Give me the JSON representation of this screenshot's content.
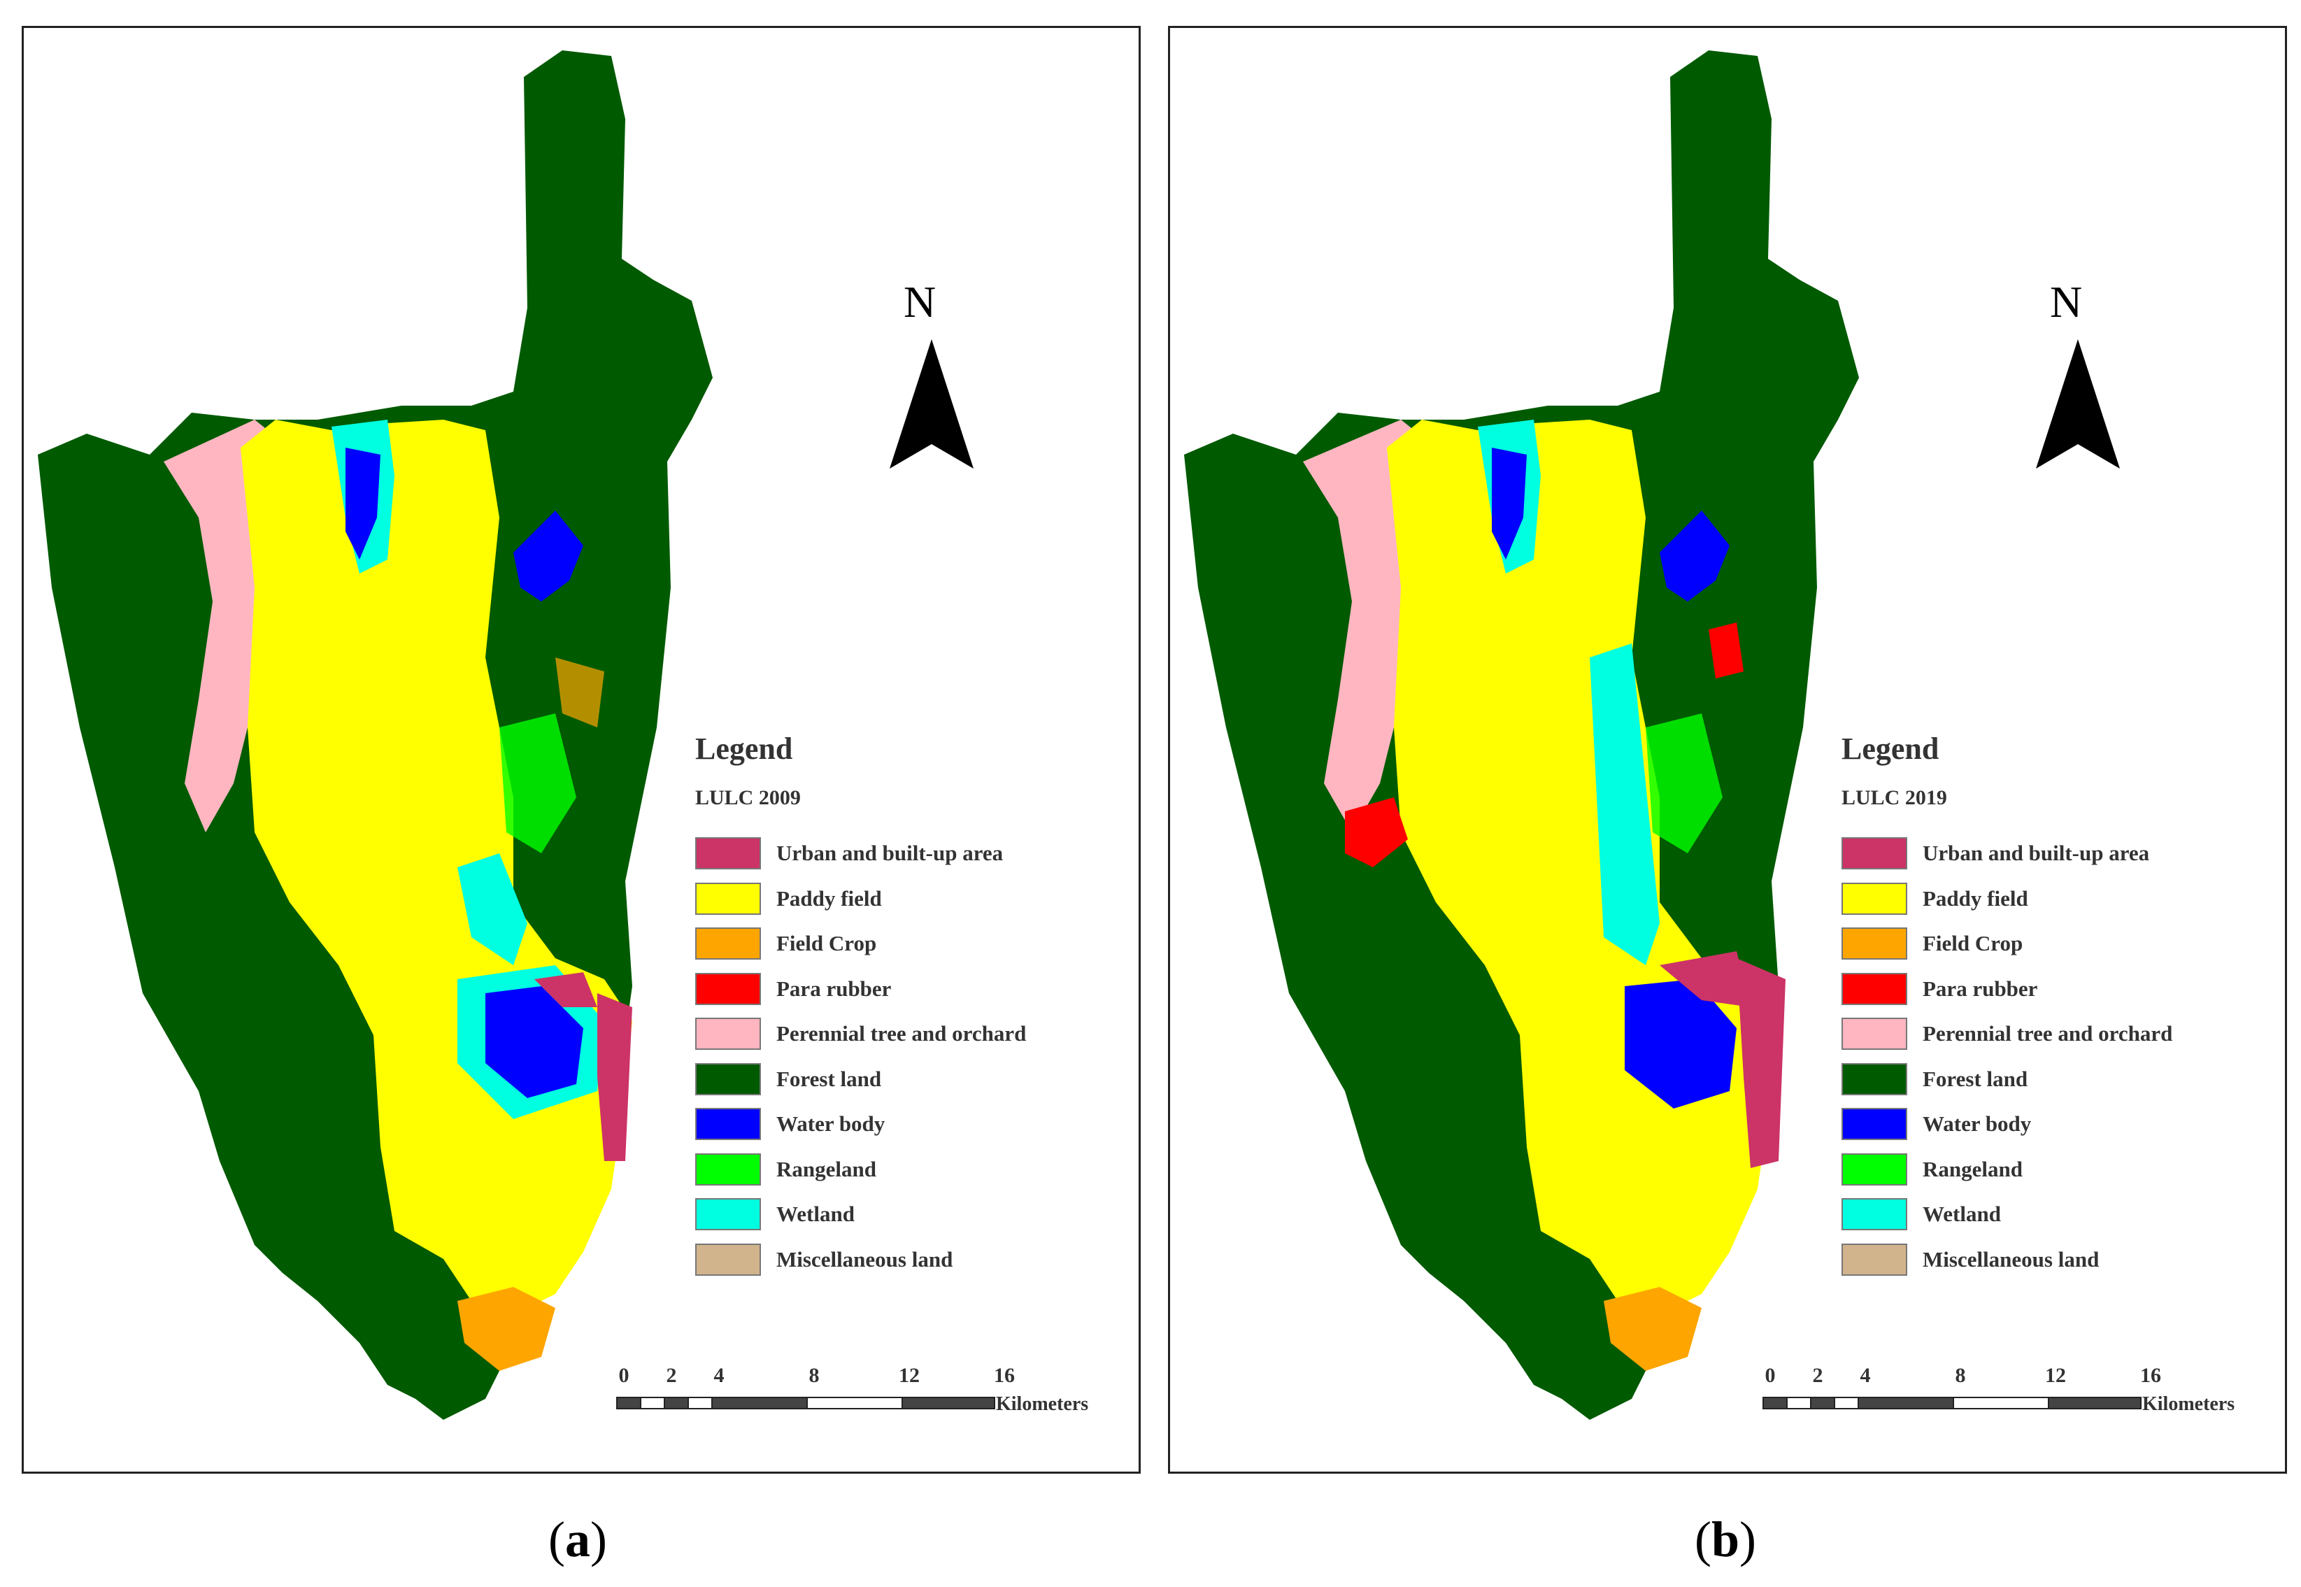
{
  "panels": [
    {
      "id": "a",
      "north_label": "N",
      "legend_title": "Legend",
      "legend_subtitle": "LULC 2009",
      "scale": {
        "ticks": [
          "0",
          "2",
          "4",
          "8",
          "12",
          "16"
        ],
        "unit": "Kilometers"
      },
      "caption_letter": "a"
    },
    {
      "id": "b",
      "north_label": "N",
      "legend_title": "Legend",
      "legend_subtitle": "LULC 2019",
      "scale": {
        "ticks": [
          "0",
          "2",
          "4",
          "8",
          "12",
          "16"
        ],
        "unit": "Kilometers"
      },
      "caption_letter": "b"
    }
  ],
  "legend_classes": [
    {
      "label": "Urban and built-up area",
      "color": "#cc3366"
    },
    {
      "label": "Paddy field",
      "color": "#ffff00"
    },
    {
      "label": "Field Crop",
      "color": "#ffa500"
    },
    {
      "label": "Para rubber",
      "color": "#ff0000"
    },
    {
      "label": "Perennial tree and orchard",
      "color": "#ffb6c1"
    },
    {
      "label": "Forest land",
      "color": "#005a00"
    },
    {
      "label": "Water body",
      "color": "#0000ff"
    },
    {
      "label": "Rangeland",
      "color": "#00ff00"
    },
    {
      "label": "Wetland",
      "color": "#00ffe0"
    },
    {
      "label": "Miscellaneous land",
      "color": "#d2b48c"
    }
  ]
}
